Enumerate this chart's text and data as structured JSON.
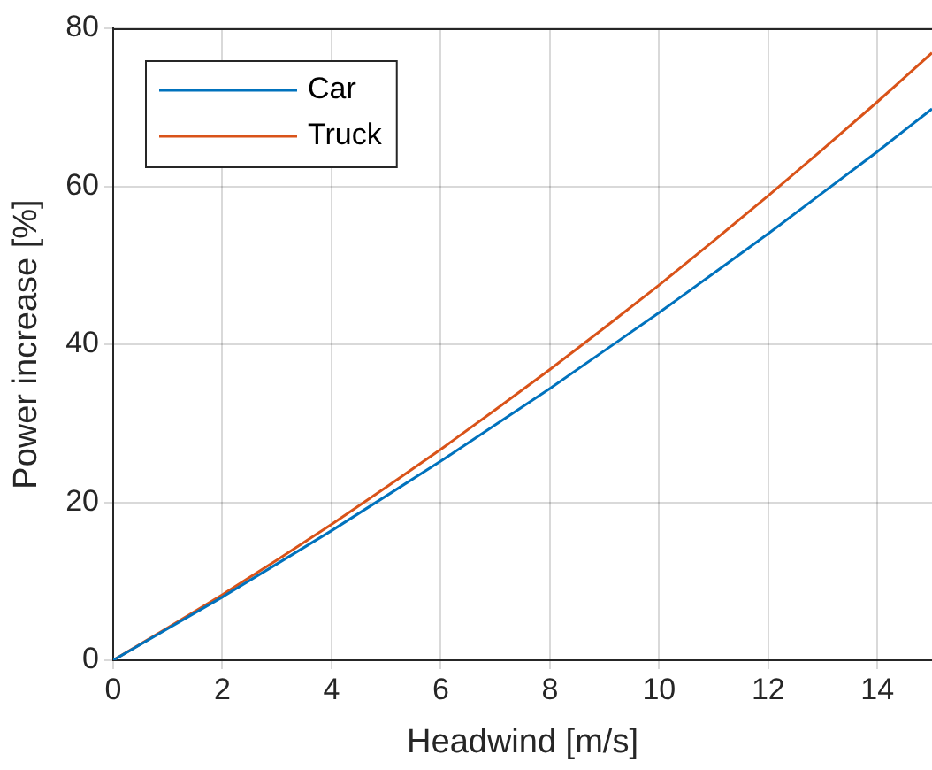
{
  "chart_data": {
    "type": "line",
    "xlabel": "Headwind [m/s]",
    "ylabel": "Power increase [%]",
    "x": [
      0,
      1,
      2,
      3,
      4,
      5,
      6,
      7,
      8,
      9,
      10,
      11,
      12,
      13,
      14,
      15
    ],
    "series": [
      {
        "name": "Car",
        "color": "#0072bd",
        "values": [
          0,
          4.0,
          8.0,
          12.2,
          16.4,
          20.8,
          25.2,
          29.8,
          34.4,
          39.2,
          44.0,
          49.0,
          54.0,
          59.2,
          64.4,
          69.8
        ]
      },
      {
        "name": "Truck",
        "color": "#d95319",
        "values": [
          0,
          4.1,
          8.3,
          12.7,
          17.2,
          21.9,
          26.7,
          31.7,
          36.8,
          42.1,
          47.5,
          53.1,
          58.8,
          64.7,
          70.7,
          76.9
        ]
      }
    ],
    "xlim": [
      0,
      15
    ],
    "xticks": [
      0,
      2,
      4,
      6,
      8,
      10,
      12,
      14
    ],
    "ylim": [
      0,
      80
    ],
    "yticks": [
      0,
      20,
      40,
      60,
      80
    ],
    "grid": true,
    "legend": "top left",
    "marker": "none",
    "line_style": "solid"
  }
}
